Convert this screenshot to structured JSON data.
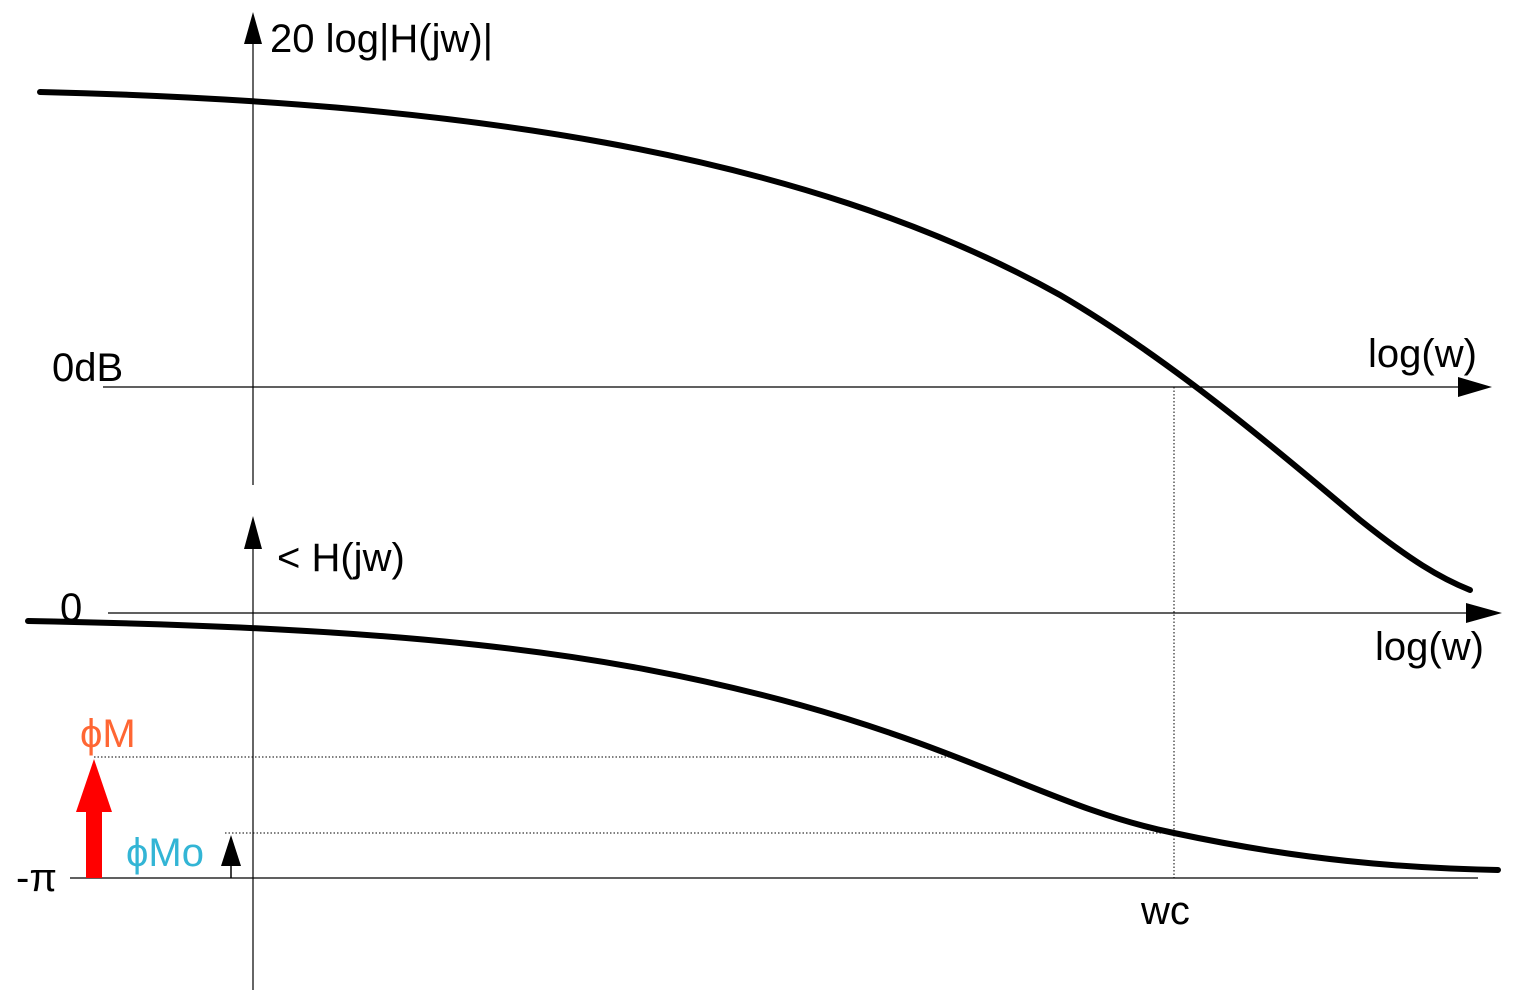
{
  "magnitude_plot": {
    "y_axis_label": "20 log|H(jw)|",
    "zero_label": "0dB",
    "x_axis_label": "log(w)"
  },
  "phase_plot": {
    "y_axis_label": "< H(jw)",
    "zero_label": "0",
    "x_axis_label": "log(w)",
    "minus_pi_label": "-π",
    "crossover_label": "wc",
    "phase_margin_label": "ϕM",
    "phase_margin_o_label": "ϕMo"
  },
  "colors": {
    "curve": "#000000",
    "axis": "#000000",
    "phase_margin_label": "#ff6633",
    "phase_margin_o_label": "#33b5d5",
    "phase_margin_arrow": "#ff0000"
  }
}
